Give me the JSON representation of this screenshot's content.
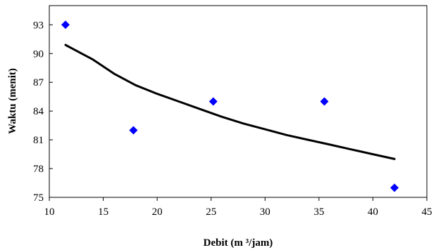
{
  "chart_data": {
    "type": "scatter",
    "title": "",
    "xlabel": "Debit (m ³/jam)",
    "ylabel": "Waktu (menit)",
    "xlim": [
      10,
      45
    ],
    "ylim": [
      75,
      95
    ],
    "x_ticks": [
      10,
      15,
      20,
      25,
      30,
      35,
      40,
      45
    ],
    "y_ticks": [
      75,
      78,
      81,
      84,
      87,
      90,
      93
    ],
    "grid": false,
    "legend": "none",
    "series": [
      {
        "kind": "scatter",
        "marker": "diamond",
        "color": "#0000ff",
        "points": [
          {
            "x": 11.5,
            "y": 93.0
          },
          {
            "x": 17.8,
            "y": 82.0
          },
          {
            "x": 25.2,
            "y": 85.0
          },
          {
            "x": 35.5,
            "y": 85.0
          },
          {
            "x": 42.0,
            "y": 76.0
          }
        ]
      },
      {
        "kind": "line",
        "color": "#000000",
        "points": [
          {
            "x": 11.5,
            "y": 90.9
          },
          {
            "x": 12.5,
            "y": 90.3
          },
          {
            "x": 14.0,
            "y": 89.4
          },
          {
            "x": 16.0,
            "y": 87.9
          },
          {
            "x": 18.0,
            "y": 86.7
          },
          {
            "x": 20.0,
            "y": 85.8
          },
          {
            "x": 22.0,
            "y": 85.0
          },
          {
            "x": 24.0,
            "y": 84.2
          },
          {
            "x": 26.0,
            "y": 83.4
          },
          {
            "x": 28.0,
            "y": 82.7
          },
          {
            "x": 30.0,
            "y": 82.1
          },
          {
            "x": 32.0,
            "y": 81.5
          },
          {
            "x": 34.0,
            "y": 81.0
          },
          {
            "x": 36.0,
            "y": 80.5
          },
          {
            "x": 38.0,
            "y": 80.0
          },
          {
            "x": 40.0,
            "y": 79.5
          },
          {
            "x": 42.0,
            "y": 79.0
          }
        ]
      }
    ]
  }
}
